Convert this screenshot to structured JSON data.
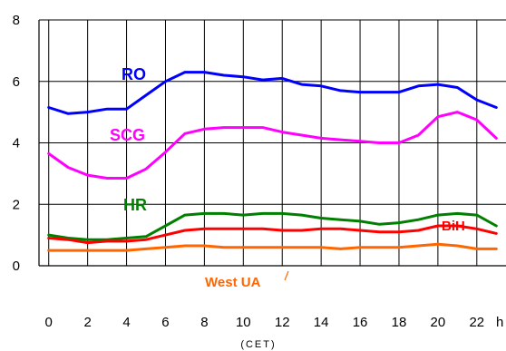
{
  "chart_data": {
    "type": "line",
    "xlabel": "(CET)",
    "x_unit": "h",
    "x_ticks": [
      "0",
      "2",
      "4",
      "6",
      "8",
      "10",
      "12",
      "14",
      "16",
      "18",
      "20",
      "22"
    ],
    "y_ticks": [
      "0",
      "2",
      "4",
      "6",
      "8"
    ],
    "xlim": [
      -0.5,
      23.5
    ],
    "ylim": [
      0,
      8
    ],
    "grid": true,
    "x": [
      0,
      1,
      2,
      3,
      4,
      5,
      6,
      7,
      8,
      9,
      10,
      11,
      12,
      13,
      14,
      15,
      16,
      17,
      18,
      19,
      20,
      21,
      22,
      23
    ],
    "series": [
      {
        "name": "RO",
        "color": "#0000ff",
        "values": [
          5.15,
          4.95,
          5.0,
          5.1,
          5.1,
          5.55,
          6.0,
          6.3,
          6.3,
          6.2,
          6.15,
          6.05,
          6.1,
          5.9,
          5.85,
          5.7,
          5.65,
          5.65,
          5.65,
          5.85,
          5.9,
          5.8,
          5.4,
          5.15
        ]
      },
      {
        "name": "SCG",
        "color": "#ff00ff",
        "values": [
          3.65,
          3.2,
          2.95,
          2.85,
          2.85,
          3.15,
          3.7,
          4.3,
          4.45,
          4.5,
          4.5,
          4.5,
          4.35,
          4.25,
          4.15,
          4.1,
          4.05,
          4.0,
          4.0,
          4.25,
          4.85,
          5.0,
          4.75,
          4.15
        ]
      },
      {
        "name": "HR",
        "color": "#008000",
        "values": [
          1.0,
          0.9,
          0.85,
          0.85,
          0.9,
          0.95,
          1.3,
          1.65,
          1.7,
          1.7,
          1.65,
          1.7,
          1.7,
          1.65,
          1.55,
          1.5,
          1.45,
          1.35,
          1.4,
          1.5,
          1.65,
          1.7,
          1.65,
          1.3
        ]
      },
      {
        "name": "BiH",
        "color": "#ff0000",
        "values": [
          0.9,
          0.85,
          0.75,
          0.8,
          0.8,
          0.85,
          1.0,
          1.15,
          1.2,
          1.2,
          1.2,
          1.2,
          1.15,
          1.15,
          1.2,
          1.2,
          1.15,
          1.1,
          1.1,
          1.15,
          1.3,
          1.3,
          1.2,
          1.05
        ]
      },
      {
        "name": "West UA",
        "color": "#ff6600",
        "values": [
          0.5,
          0.5,
          0.5,
          0.5,
          0.5,
          0.55,
          0.6,
          0.65,
          0.65,
          0.6,
          0.6,
          0.6,
          0.6,
          0.6,
          0.6,
          0.55,
          0.6,
          0.6,
          0.6,
          0.65,
          0.7,
          0.65,
          0.55,
          0.55
        ]
      }
    ]
  }
}
